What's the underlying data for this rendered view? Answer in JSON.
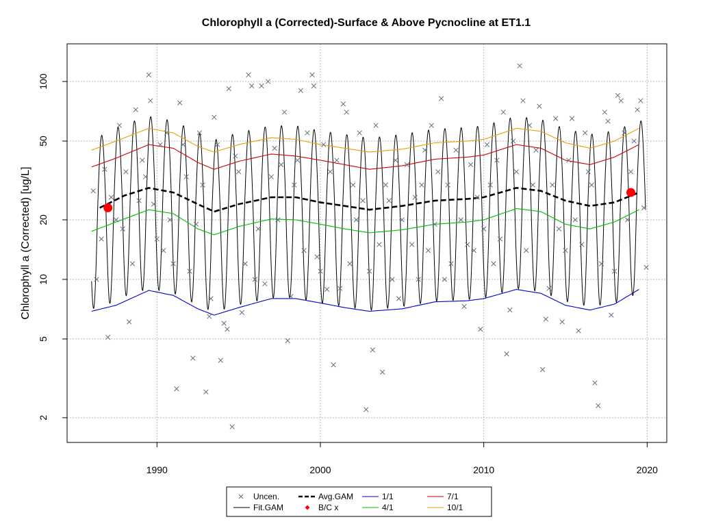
{
  "chart_data": {
    "type": "line",
    "title": "Chlorophyll a (Corrected)-Surface & Above Pycnocline at ET1.1",
    "ylabel": "Chlorophyll a (Corrected) [ug/L]",
    "xlabel": "",
    "y_scale": "log",
    "xlim": [
      1984.5,
      2021.2
    ],
    "ylim": [
      1.5,
      155
    ],
    "grid": true,
    "x_ticks": [
      {
        "value": 1990,
        "label": "1990"
      },
      {
        "value": 2000,
        "label": "2000"
      },
      {
        "value": 2010,
        "label": "2010"
      },
      {
        "value": 2020,
        "label": "2020"
      }
    ],
    "y_ticks": [
      {
        "value": 2,
        "label": "2"
      },
      {
        "value": 5,
        "label": "5"
      },
      {
        "value": 10,
        "label": "10"
      },
      {
        "value": 20,
        "label": "20"
      },
      {
        "value": 50,
        "label": "50"
      },
      {
        "value": 100,
        "label": "100"
      }
    ],
    "colors": {
      "uncen": "#607080",
      "fit_gam": "#000000",
      "avg_gam": "#000000",
      "bc": "#ff0000",
      "q1_1": "#0000cc",
      "q4_1": "#00bb00",
      "q7_1": "#cc0000",
      "q10_1": "#e6a000",
      "grid": "#b8b8b8"
    },
    "legend": {
      "placement": "bottom-center",
      "entries": [
        {
          "key": "uncen",
          "label": "Uncen.",
          "style": "cross"
        },
        {
          "key": "avg_gam",
          "label": "Avg.GAM",
          "style": "dashed"
        },
        {
          "key": "q1_1",
          "label": "1/1",
          "style": "line"
        },
        {
          "key": "q7_1",
          "label": "7/1",
          "style": "line"
        },
        {
          "key": "fit_gam",
          "label": "Fit.GAM",
          "style": "line"
        },
        {
          "key": "bc",
          "label": "B/C x",
          "style": "diamond"
        },
        {
          "key": "q4_1",
          "label": "4/1",
          "style": "line"
        },
        {
          "key": "q10_1",
          "label": "10/1",
          "style": "line"
        }
      ]
    },
    "series": [
      {
        "name": "Avg.GAM",
        "points": [
          [
            1986.5,
            23
          ],
          [
            1988,
            26.5
          ],
          [
            1989.5,
            29
          ],
          [
            1991,
            27.5
          ],
          [
            1992.5,
            24
          ],
          [
            1993.5,
            22
          ],
          [
            1995,
            24
          ],
          [
            1997,
            26
          ],
          [
            1998.5,
            26
          ],
          [
            2000,
            24.5
          ],
          [
            2001.5,
            23.5
          ],
          [
            2003,
            22.5
          ],
          [
            2005,
            23.5
          ],
          [
            2007,
            25
          ],
          [
            2009,
            25.5
          ],
          [
            2010,
            26
          ],
          [
            2012,
            29
          ],
          [
            2013.5,
            28
          ],
          [
            2015,
            25
          ],
          [
            2016.5,
            23.5
          ],
          [
            2018,
            24.5
          ],
          [
            2019.5,
            27.5
          ]
        ]
      },
      {
        "name": "1/1",
        "points": [
          [
            1986,
            6.9
          ],
          [
            1987.5,
            7.4
          ],
          [
            1989.5,
            8.8
          ],
          [
            1991,
            8.3
          ],
          [
            1992.5,
            7.1
          ],
          [
            1993.5,
            6.6
          ],
          [
            1995,
            7.2
          ],
          [
            1997,
            8
          ],
          [
            1998.5,
            8
          ],
          [
            2000,
            7.6
          ],
          [
            2001.5,
            7.2
          ],
          [
            2003,
            6.9
          ],
          [
            2005,
            7.1
          ],
          [
            2007,
            7.7
          ],
          [
            2009,
            7.8
          ],
          [
            2010,
            8
          ],
          [
            2012,
            8.9
          ],
          [
            2013.5,
            8.5
          ],
          [
            2015,
            7.4
          ],
          [
            2016.5,
            7
          ],
          [
            2018,
            7.5
          ],
          [
            2019.5,
            8.9
          ]
        ]
      },
      {
        "name": "4/1",
        "points": [
          [
            1986,
            17.5
          ],
          [
            1987.5,
            19.5
          ],
          [
            1989.5,
            22.5
          ],
          [
            1991,
            21.5
          ],
          [
            1992.5,
            18
          ],
          [
            1993.5,
            16.8
          ],
          [
            1995,
            18.5
          ],
          [
            1997,
            20.2
          ],
          [
            1998.5,
            20
          ],
          [
            2000,
            19
          ],
          [
            2001.5,
            18
          ],
          [
            2003,
            17.2
          ],
          [
            2005,
            17.8
          ],
          [
            2007,
            19
          ],
          [
            2009,
            19.5
          ],
          [
            2010,
            20
          ],
          [
            2012,
            22.8
          ],
          [
            2013.5,
            22
          ],
          [
            2015,
            19
          ],
          [
            2016.5,
            18
          ],
          [
            2018,
            19.5
          ],
          [
            2019.5,
            22.5
          ]
        ]
      },
      {
        "name": "7/1",
        "points": [
          [
            1986,
            37
          ],
          [
            1987.5,
            41
          ],
          [
            1989.5,
            48
          ],
          [
            1991,
            46
          ],
          [
            1992.5,
            39
          ],
          [
            1993.5,
            36
          ],
          [
            1995,
            39.5
          ],
          [
            1997,
            43
          ],
          [
            1998.5,
            42
          ],
          [
            2000,
            40
          ],
          [
            2001.5,
            38
          ],
          [
            2003,
            36
          ],
          [
            2005,
            37.5
          ],
          [
            2007,
            40.5
          ],
          [
            2009,
            41.5
          ],
          [
            2010,
            42.5
          ],
          [
            2012,
            48
          ],
          [
            2013.5,
            46
          ],
          [
            2015,
            40
          ],
          [
            2016.5,
            38
          ],
          [
            2018,
            41.5
          ],
          [
            2019.5,
            48
          ]
        ]
      },
      {
        "name": "10/1",
        "points": [
          [
            1986,
            45
          ],
          [
            1987.5,
            50
          ],
          [
            1989.5,
            58
          ],
          [
            1991,
            55
          ],
          [
            1992.5,
            47
          ],
          [
            1993.5,
            44
          ],
          [
            1995,
            48
          ],
          [
            1997,
            52
          ],
          [
            1998.5,
            51
          ],
          [
            2000,
            48
          ],
          [
            2001.5,
            46
          ],
          [
            2003,
            44
          ],
          [
            2005,
            45.5
          ],
          [
            2007,
            49
          ],
          [
            2009,
            50
          ],
          [
            2010,
            51
          ],
          [
            2012,
            58
          ],
          [
            2013.5,
            56
          ],
          [
            2015,
            49
          ],
          [
            2016.5,
            46
          ],
          [
            2018,
            50
          ],
          [
            2019.5,
            58
          ]
        ]
      }
    ],
    "fit_gam": {
      "name": "Fit.GAM",
      "start_year": 1986,
      "end_year": 2019.9,
      "seasonal_peak_factor": 2.3,
      "seasonal_trough_factor": 0.31
    },
    "bc_points": [
      [
        1987,
        23
      ],
      [
        2019,
        27.5
      ]
    ],
    "uncen_points": [
      [
        1986.1,
        28
      ],
      [
        1986.3,
        10
      ],
      [
        1986.6,
        16
      ],
      [
        1986.8,
        36
      ],
      [
        1987,
        5.1
      ],
      [
        1987.2,
        26
      ],
      [
        1987.5,
        20
      ],
      [
        1987.7,
        60
      ],
      [
        1987.9,
        18
      ],
      [
        1988.1,
        35
      ],
      [
        1988.3,
        6.1
      ],
      [
        1988.5,
        12
      ],
      [
        1988.7,
        72
      ],
      [
        1988.9,
        25
      ],
      [
        1989.1,
        40
      ],
      [
        1989.3,
        33
      ],
      [
        1989.5,
        108
      ],
      [
        1989.6,
        80
      ],
      [
        1989.8,
        24
      ],
      [
        1990,
        16
      ],
      [
        1990.2,
        48
      ],
      [
        1990.4,
        14
      ],
      [
        1990.6,
        55
      ],
      [
        1990.8,
        20
      ],
      [
        1991,
        12
      ],
      [
        1991.2,
        2.8
      ],
      [
        1991.4,
        78
      ],
      [
        1991.6,
        48
      ],
      [
        1991.8,
        33
      ],
      [
        1992,
        11
      ],
      [
        1992.2,
        4
      ],
      [
        1992.4,
        19
      ],
      [
        1992.6,
        55
      ],
      [
        1992.8,
        30
      ],
      [
        1993,
        2.7
      ],
      [
        1993.2,
        6.5
      ],
      [
        1993.3,
        8
      ],
      [
        1993.5,
        66
      ],
      [
        1993.7,
        48
      ],
      [
        1993.9,
        3.9
      ],
      [
        1994.1,
        6
      ],
      [
        1994.3,
        5.6
      ],
      [
        1994.4,
        92
      ],
      [
        1994.6,
        1.8
      ],
      [
        1994.8,
        42
      ],
      [
        1995,
        35
      ],
      [
        1995.2,
        6.8
      ],
      [
        1995.4,
        12
      ],
      [
        1995.6,
        108
      ],
      [
        1995.8,
        95
      ],
      [
        1996,
        10
      ],
      [
        1996.2,
        18
      ],
      [
        1996.4,
        95
      ],
      [
        1996.6,
        9.5
      ],
      [
        1996.8,
        100
      ],
      [
        1997,
        33
      ],
      [
        1997.2,
        46
      ],
      [
        1997.4,
        20
      ],
      [
        1997.6,
        38
      ],
      [
        1997.8,
        70
      ],
      [
        1998,
        4.9
      ],
      [
        1998.2,
        8.2
      ],
      [
        1998.4,
        30
      ],
      [
        1998.6,
        40
      ],
      [
        1998.8,
        90
      ],
      [
        1999,
        14
      ],
      [
        1999.2,
        55
      ],
      [
        1999.5,
        108
      ],
      [
        1999.6,
        95
      ],
      [
        1999.8,
        13
      ],
      [
        2000,
        11
      ],
      [
        2000.2,
        48
      ],
      [
        2000.4,
        8.9
      ],
      [
        2000.6,
        35
      ],
      [
        2000.8,
        3.7
      ],
      [
        2001,
        40
      ],
      [
        2001.2,
        9
      ],
      [
        2001.4,
        77
      ],
      [
        2001.6,
        70
      ],
      [
        2001.8,
        12
      ],
      [
        2002,
        30
      ],
      [
        2002.2,
        20
      ],
      [
        2002.4,
        55
      ],
      [
        2002.6,
        25
      ],
      [
        2002.8,
        2.2
      ],
      [
        2003,
        11
      ],
      [
        2003.2,
        4.4
      ],
      [
        2003.4,
        60
      ],
      [
        2003.6,
        15
      ],
      [
        2003.8,
        3.4
      ],
      [
        2004,
        30
      ],
      [
        2004.2,
        25
      ],
      [
        2004.4,
        10
      ],
      [
        2004.6,
        40
      ],
      [
        2004.8,
        8
      ],
      [
        2005,
        20
      ],
      [
        2005.3,
        38
      ],
      [
        2005.6,
        15
      ],
      [
        2005.8,
        26
      ],
      [
        2006,
        10
      ],
      [
        2006.2,
        30
      ],
      [
        2006.4,
        45
      ],
      [
        2006.6,
        14
      ],
      [
        2006.8,
        60
      ],
      [
        2007,
        19
      ],
      [
        2007.2,
        35
      ],
      [
        2007.4,
        82
      ],
      [
        2007.6,
        10
      ],
      [
        2007.8,
        30
      ],
      [
        2008,
        12
      ],
      [
        2008.3,
        45
      ],
      [
        2008.6,
        20
      ],
      [
        2008.8,
        7.3
      ],
      [
        2009,
        15
      ],
      [
        2009.2,
        38
      ],
      [
        2009.4,
        14
      ],
      [
        2009.6,
        26
      ],
      [
        2009.8,
        5.6
      ],
      [
        2010,
        18
      ],
      [
        2010.2,
        48
      ],
      [
        2010.4,
        30
      ],
      [
        2010.6,
        12
      ],
      [
        2010.8,
        40
      ],
      [
        2011,
        16
      ],
      [
        2011.2,
        70
      ],
      [
        2011.4,
        4.2
      ],
      [
        2011.6,
        7
      ],
      [
        2011.8,
        50
      ],
      [
        2012,
        35
      ],
      [
        2012.2,
        120
      ],
      [
        2012.4,
        80
      ],
      [
        2012.6,
        14
      ],
      [
        2012.8,
        60
      ],
      [
        2013,
        30
      ],
      [
        2013.2,
        45
      ],
      [
        2013.4,
        75
      ],
      [
        2013.6,
        3.5
      ],
      [
        2013.8,
        6.3
      ],
      [
        2014,
        9
      ],
      [
        2014.2,
        30
      ],
      [
        2014.4,
        65
      ],
      [
        2014.6,
        18
      ],
      [
        2014.8,
        6.1
      ],
      [
        2015,
        14
      ],
      [
        2015.2,
        40
      ],
      [
        2015.4,
        65
      ],
      [
        2015.6,
        20
      ],
      [
        2015.8,
        5.5
      ],
      [
        2016,
        15
      ],
      [
        2016.2,
        55
      ],
      [
        2016.4,
        35
      ],
      [
        2016.6,
        30
      ],
      [
        2016.8,
        3
      ],
      [
        2017,
        2.3
      ],
      [
        2017.2,
        12
      ],
      [
        2017.4,
        70
      ],
      [
        2017.6,
        63
      ],
      [
        2017.8,
        6.6
      ],
      [
        2018,
        11
      ],
      [
        2018.2,
        85
      ],
      [
        2018.4,
        80
      ],
      [
        2018.6,
        55
      ],
      [
        2018.8,
        20
      ],
      [
        2019,
        35
      ],
      [
        2019.2,
        50
      ],
      [
        2019.4,
        72
      ],
      [
        2019.6,
        80
      ],
      [
        2019.8,
        23
      ],
      [
        2019.95,
        11.5
      ]
    ]
  }
}
